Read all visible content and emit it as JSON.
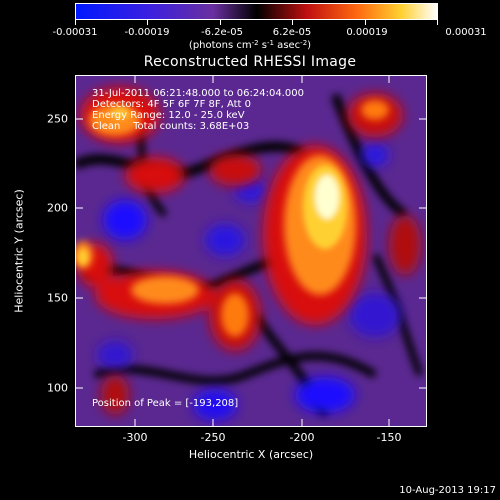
{
  "colorbar": {
    "labels": [
      "-0.00031",
      "-0.00019",
      "-6.2e-05",
      "6.2e-05",
      "0.00019",
      "0.00031"
    ],
    "units_text": "(photons cm",
    "units_parts": [
      "(photons cm",
      "-2",
      " s",
      "-1",
      " asec",
      "-2",
      ")"
    ]
  },
  "title": "Reconstructed RHESSI Image",
  "annotations": {
    "line1": "31-Jul-2011 06:21:48.000 to 06:24:04.000",
    "line2": "Detectors: 4F 5F 6F 7F 8F, Att 0",
    "line3": "Energy Range: 12.0 - 25.0 keV",
    "line4": "Clean    Total counts: 3.68E+03",
    "peak": "Position of Peak = [-193,208]"
  },
  "axes": {
    "xlabel": "Heliocentric X (arcsec)",
    "ylabel": "Heliocentric Y (arcsec)",
    "xticks": [
      "-300",
      "-250",
      "-200",
      "-150"
    ],
    "yticks": [
      "250",
      "200",
      "150",
      "100"
    ],
    "xlim": [
      -333,
      -135
    ],
    "ylim": [
      83,
      281
    ]
  },
  "footer": {
    "date": "10-Aug-2013 19:17"
  },
  "colors": {
    "blue": "#1010ff",
    "purple": "#6a2fa0",
    "black": "#000000",
    "red": "#d81010",
    "orange": "#ff8a1e",
    "yellow": "#ffe040",
    "white": "#ffffff"
  }
}
